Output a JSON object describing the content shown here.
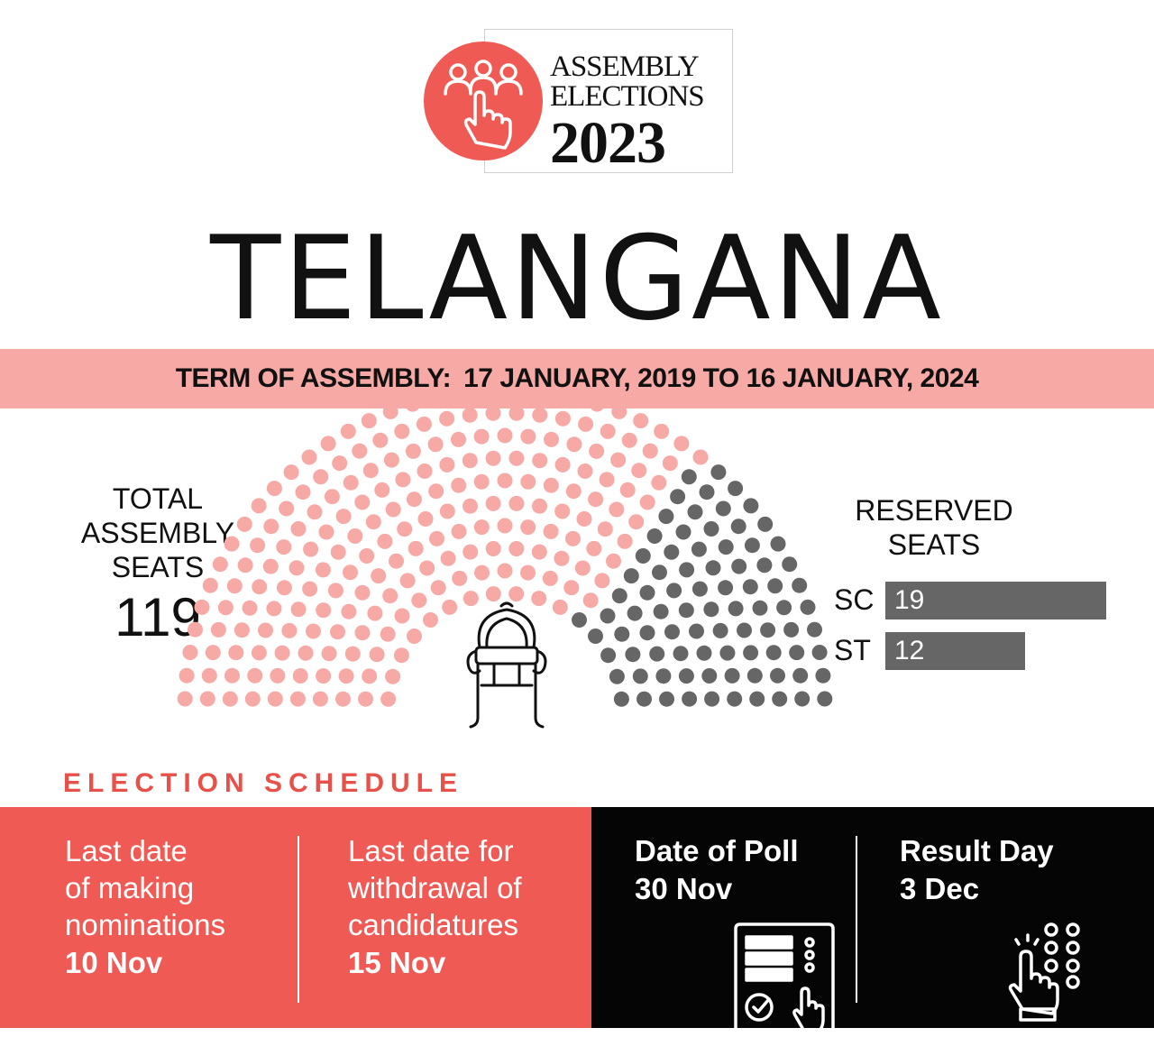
{
  "logo": {
    "line1": "ASSEMBLY",
    "line2": "ELECTIONS",
    "year": "2023",
    "icon": "voters-hand-icon",
    "accent_color": "#f05a55"
  },
  "state": "TELANGANA",
  "term": {
    "label": "TERM OF ASSEMBLY:",
    "value": "17 JANUARY, 2019 TO 16 JANUARY, 2024",
    "band_color": "#f6a9a5"
  },
  "total_seats": {
    "label": "TOTAL\nASSEMBLY\nSEATS",
    "value": "119"
  },
  "hemicycle": {
    "seat_colors": {
      "general": "#f6a9a5",
      "reserved": "#666666"
    },
    "center_icon": "speaker-chair-icon"
  },
  "reserved": {
    "label": "RESERVED\nSEATS",
    "items": [
      {
        "tag": "SC",
        "value": "19",
        "count": 19
      },
      {
        "tag": "ST",
        "value": "12",
        "count": 12
      }
    ],
    "bar_color": "#666666"
  },
  "schedule": {
    "title": "ELECTION SCHEDULE",
    "title_color": "#e8504a",
    "cells": [
      {
        "label": "Last date\nof making\nnominations",
        "date": "10 Nov"
      },
      {
        "label": "Last date for\nwithdrawal of\ncandidatures",
        "date": "15 Nov"
      },
      {
        "label": "Date of Poll",
        "date": "30 Nov",
        "icon": "evm-voting-icon"
      },
      {
        "label": "Result Day",
        "date": "3 Dec",
        "icon": "counting-hand-icon"
      }
    ]
  }
}
